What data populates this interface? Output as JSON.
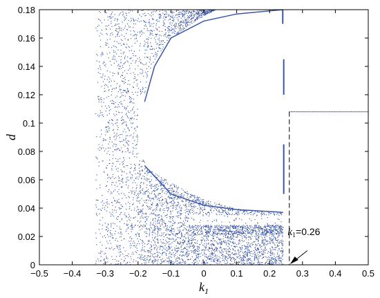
{
  "chart_data": {
    "type": "scatter",
    "title": "",
    "xlabel": "k",
    "xlabel_sub": "1",
    "ylabel": "d",
    "xlim": [
      -0.5,
      0.5
    ],
    "ylim": [
      0,
      0.18
    ],
    "x_ticks": [
      -0.5,
      -0.4,
      -0.3,
      -0.2,
      -0.1,
      0,
      0.1,
      0.2,
      0.3,
      0.4,
      0.5
    ],
    "x_tick_labels": [
      "−0.5",
      "−0.4",
      "−0.3",
      "−0.2",
      "−0.1",
      "0",
      "0.1",
      "0.2",
      "0.3",
      "0.4",
      "0.5"
    ],
    "y_ticks": [
      0,
      0.02,
      0.04,
      0.06,
      0.08,
      0.1,
      0.12,
      0.14,
      0.16,
      0.18
    ],
    "y_tick_labels": [
      "0",
      "0.02",
      "0.04",
      "0.06",
      "0.08",
      "0.1",
      "0.12",
      "0.14",
      "0.16",
      "0.18"
    ],
    "grid": false,
    "marker_color": "#3a55a4",
    "chaotic_region_k1": [
      -0.33,
      0.24
    ],
    "fixed_point_line": {
      "k1": [
        0.26,
        0.5
      ],
      "d": 0.108
    },
    "upper_branch_samples": [
      {
        "k1": -0.18,
        "d": 0.115
      },
      {
        "k1": -0.15,
        "d": 0.14
      },
      {
        "k1": -0.1,
        "d": 0.16
      },
      {
        "k1": 0.0,
        "d": 0.172
      },
      {
        "k1": 0.1,
        "d": 0.177
      },
      {
        "k1": 0.24,
        "d": 0.18
      }
    ],
    "lower_branch_samples": [
      {
        "k1": -0.18,
        "d": 0.07
      },
      {
        "k1": -0.1,
        "d": 0.05
      },
      {
        "k1": 0.0,
        "d": 0.042
      },
      {
        "k1": 0.1,
        "d": 0.039
      },
      {
        "k1": 0.24,
        "d": 0.037
      }
    ],
    "annotation": {
      "var": "k",
      "sub": "1",
      "text": "=0.26",
      "k1": 0.26,
      "text_k1": 0.255,
      "text_d": 0.021
    }
  }
}
